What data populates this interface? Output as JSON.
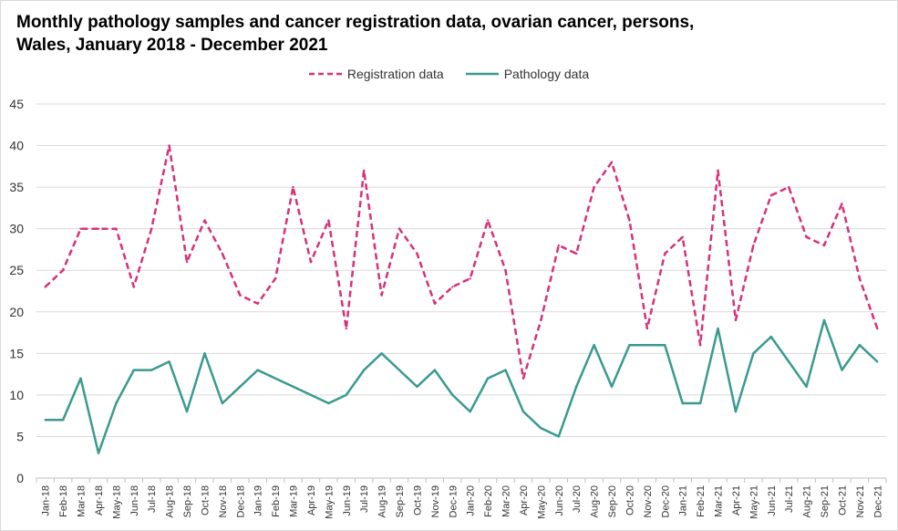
{
  "chart_data": {
    "type": "line",
    "title_line1": "Monthly pathology samples and cancer registration data, ovarian cancer, persons,",
    "title_line2": "Wales, January 2018 - December 2021",
    "ylim": [
      0,
      45
    ],
    "yticks": [
      0,
      5,
      10,
      15,
      20,
      25,
      30,
      35,
      40,
      45
    ],
    "grid": true,
    "legend_position": "top-center",
    "categories": [
      "Jan-18",
      "Feb-18",
      "Mar-18",
      "Apr-18",
      "May-18",
      "Jun-18",
      "Jul-18",
      "Aug-18",
      "Sep-18",
      "Oct-18",
      "Nov-18",
      "Dec-18",
      "Jan-19",
      "Feb-19",
      "Mar-19",
      "Apr-19",
      "May-19",
      "Jun-19",
      "Jul-19",
      "Aug-19",
      "Sep-19",
      "Oct-19",
      "Nov-19",
      "Dec-19",
      "Jan-20",
      "Feb-20",
      "Mar-20",
      "Apr-20",
      "May-20",
      "Jun-20",
      "Jul-20",
      "Aug-20",
      "Sep-20",
      "Oct-20",
      "Nov-20",
      "Dec-20",
      "Jan-21",
      "Feb-21",
      "Mar-21",
      "Apr-21",
      "May-21",
      "Jun-21",
      "Jul-21",
      "Aug-21",
      "Sep-21",
      "Oct-21",
      "Nov-21",
      "Dec-21"
    ],
    "series": [
      {
        "name": "Registration data",
        "color": "#d6317a",
        "dashed": true,
        "values": [
          23,
          25,
          30,
          30,
          30,
          23,
          30,
          40,
          26,
          31,
          27,
          22,
          21,
          24,
          35,
          26,
          31,
          18,
          37,
          22,
          30,
          27,
          21,
          23,
          24,
          31,
          25,
          12,
          19,
          28,
          27,
          35,
          38,
          31,
          18,
          27,
          29,
          16,
          37,
          19,
          28,
          34,
          35,
          29,
          28,
          33,
          24,
          18
        ]
      },
      {
        "name": "Pathology data",
        "color": "#3a9a8f",
        "dashed": false,
        "values": [
          7,
          7,
          12,
          3,
          9,
          13,
          13,
          14,
          8,
          15,
          9,
          11,
          13,
          12,
          11,
          10,
          9,
          10,
          13,
          15,
          13,
          11,
          13,
          10,
          8,
          12,
          13,
          8,
          6,
          5,
          11,
          16,
          11,
          16,
          16,
          16,
          9,
          9,
          18,
          8,
          15,
          17,
          14,
          11,
          19,
          13,
          16,
          14
        ]
      }
    ]
  }
}
